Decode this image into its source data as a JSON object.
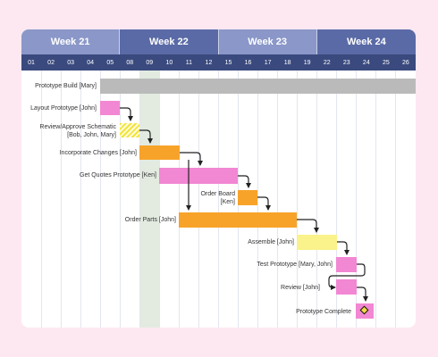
{
  "weeks": [
    "Week 21",
    "Week 22",
    "Week 23",
    "Week 24"
  ],
  "days": [
    "01",
    "02",
    "03",
    "04",
    "05",
    "08",
    "09",
    "10",
    "11",
    "12",
    "15",
    "16",
    "17",
    "18",
    "19",
    "22",
    "23",
    "24",
    "25",
    "26"
  ],
  "tasks": {
    "prototype_build": "Prototype Build [Mary]",
    "layout_prototype": "Layout Prototype [John]",
    "review_approve_1": "Review/Approve Schematic",
    "review_approve_2": "[Bob, John, Mary]",
    "incorporate_changes": "Incorporate Changes [John]",
    "get_quotes": "Get Quotes Prototype [Ken]",
    "order_board_1": "Order Board",
    "order_board_2": "[Ken]",
    "order_parts": "Order Parts [John]",
    "assemble": "Assemble [John]",
    "test_prototype": "Test Prototype [Mary, John]",
    "review": "Review [John]",
    "prototype_complete": "Prototype Complete"
  },
  "colors": {
    "summary": "#bababa",
    "pink": "#f287d3",
    "orange": "#f7a32a",
    "yellow": "#faf28a",
    "week_light": "#8a97c8",
    "week_dark": "#5a6aa6",
    "day_header": "#3a4a7e"
  }
}
